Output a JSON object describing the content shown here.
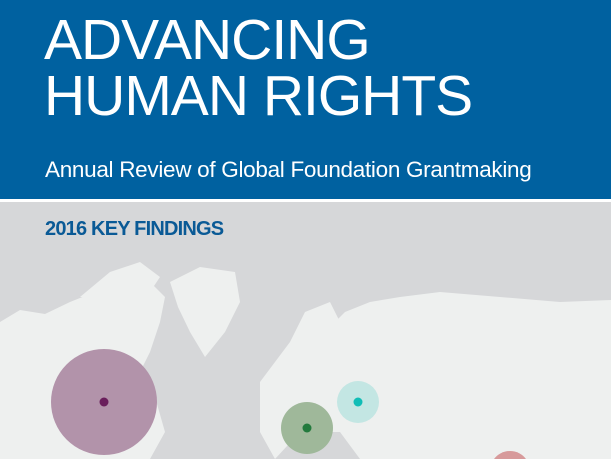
{
  "header": {
    "title_line1": "ADVANCING",
    "title_line2": "HUMAN RIGHTS",
    "subtitle": "Annual Review of Global Foundation Grantmaking"
  },
  "section": {
    "heading": "2016 KEY FINDINGS"
  },
  "colors": {
    "banner": "#0061a0",
    "map_land": "#eef0ef",
    "map_water": "#d6d7d9",
    "north_america": "#b293aa",
    "western_europe": "#9fb89a",
    "eastern_europe": "#c3e6e3",
    "asia": "#d79a9b"
  }
}
